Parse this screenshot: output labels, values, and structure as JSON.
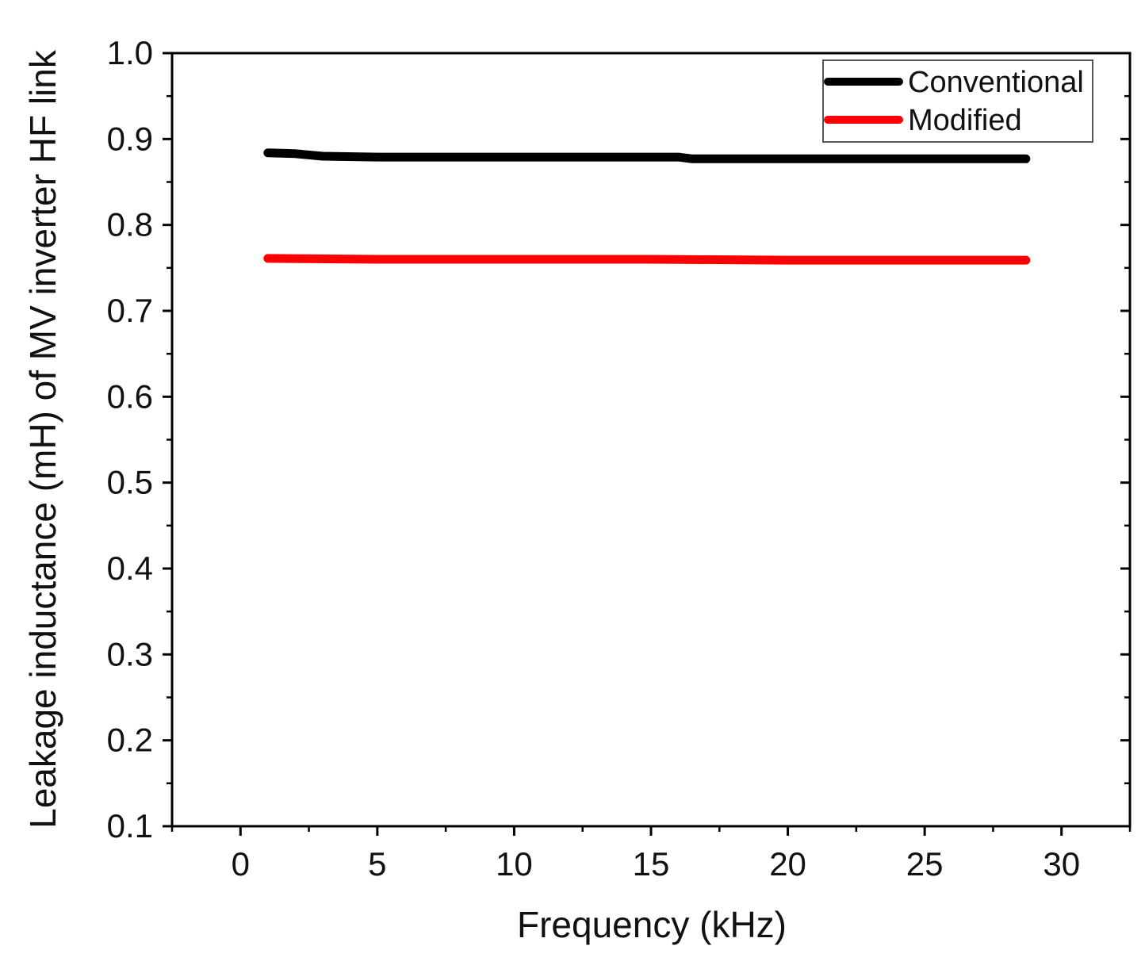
{
  "chart_data": {
    "type": "line",
    "title": "",
    "xlabel": "Frequency (kHz)",
    "ylabel": "Leakage inductance (mH) of MV inverter HF link",
    "xlim": [
      -2.5,
      32.5
    ],
    "ylim": [
      0.1,
      1.0
    ],
    "xticks": [
      0,
      5,
      10,
      15,
      20,
      25,
      30
    ],
    "xtick_labels": [
      "0",
      "5",
      "10",
      "15",
      "20",
      "25",
      "30"
    ],
    "yticks": [
      0.1,
      0.2,
      0.3,
      0.4,
      0.5,
      0.6,
      0.7,
      0.8,
      0.9,
      1.0
    ],
    "ytick_labels": [
      "0.1",
      "0.2",
      "0.3",
      "0.4",
      "0.5",
      "0.6",
      "0.7",
      "0.8",
      "0.9",
      "1.0"
    ],
    "grid": false,
    "legend_position": "top-right",
    "series": [
      {
        "name": "Conventional",
        "color": "#000000",
        "x": [
          1,
          2,
          3,
          5,
          10,
          16,
          16.5,
          20,
          25,
          28.7
        ],
        "y": [
          0.884,
          0.883,
          0.88,
          0.879,
          0.879,
          0.879,
          0.877,
          0.877,
          0.877,
          0.877
        ]
      },
      {
        "name": "Modified",
        "color": "#ff0000",
        "x": [
          1,
          5,
          10,
          15,
          20,
          25,
          28.7
        ],
        "y": [
          0.761,
          0.76,
          0.76,
          0.76,
          0.759,
          0.759,
          0.759
        ]
      }
    ]
  }
}
